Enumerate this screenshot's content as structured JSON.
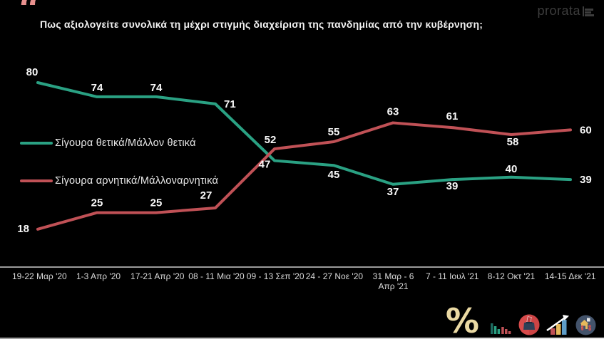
{
  "header": {
    "quote_glyph": "“",
    "title": "Πως αξιολογείτε συνολικά τη μέχρι στιγμής διαχείριση της πανδημίας από την κυβέρνηση;",
    "brand": {
      "text": "prorata",
      "color": "#3d3d3d",
      "icon": "bar-chart-logo-icon"
    }
  },
  "chart_data": {
    "type": "line",
    "title": "Πως αξιολογείτε συνολικά τη μέχρι στιγμής διαχείριση της πανδημίας από την κυβέρνηση;",
    "categories": [
      "19-22 Μαρ '20",
      "1-3 Απρ '20",
      "17-21 Απρ '20",
      "08 - 11 Μια '20",
      "09 - 13 Σεπ '20",
      "24 - 27 Νοε '20",
      "31 Μαρ - 6 Απρ '21",
      "7 - 11 Ιουλ '21",
      "8-12 Οκτ '21",
      "14-15 Δεκ '21"
    ],
    "series": [
      {
        "name": "Σίγουρα θετικά/Μάλλον θετικά",
        "color": "#2aa183",
        "values": [
          80,
          74,
          74,
          71,
          47,
          45,
          37,
          39,
          40,
          39
        ]
      },
      {
        "name": "Σίγουρα αρνητικά/Μάλλοναρνητικά",
        "color": "#c05156",
        "values": [
          18,
          25,
          25,
          27,
          52,
          55,
          63,
          61,
          58,
          60
        ]
      }
    ],
    "ylim": [
      0,
      100
    ],
    "grid": false,
    "y_axis_visible": false,
    "data_labels": true,
    "legend_position": "middle-left",
    "label_offsets": [
      [
        [
          -8,
          -10
        ],
        [
          0,
          -8
        ],
        [
          0,
          -8
        ],
        [
          12,
          5
        ],
        [
          -14,
          10
        ],
        [
          0,
          18
        ],
        [
          0,
          15
        ],
        [
          0,
          14
        ],
        [
          0,
          -7
        ],
        [
          13,
          5
        ]
      ],
      [
        [
          -12,
          4
        ],
        [
          0,
          -9
        ],
        [
          0,
          -9
        ],
        [
          -13,
          -13
        ],
        [
          -6,
          -8
        ],
        [
          0,
          -9
        ],
        [
          0,
          -11
        ],
        [
          0,
          -11
        ],
        [
          2,
          15
        ],
        [
          13,
          5
        ]
      ]
    ],
    "label_anchors": [
      [
        "m",
        "m",
        "m",
        "s",
        "m",
        "m",
        "m",
        "m",
        "m",
        "s"
      ],
      [
        "e",
        "m",
        "m",
        "m",
        "m",
        "m",
        "m",
        "m",
        "m",
        "s"
      ]
    ]
  },
  "footer": {
    "percent_glyph": "%",
    "icons": [
      {
        "name": "percent-icon",
        "color": "#ead9a3"
      },
      {
        "name": "bar-chart-icon",
        "colors": [
          "#1d6b60",
          "#2aa183",
          "#c05156"
        ]
      },
      {
        "name": "ballot-box-icon",
        "colors": [
          "#d84b4b",
          "#2e4057"
        ]
      },
      {
        "name": "trend-chart-icon",
        "colors": [
          "#c05156",
          "#e5b95c",
          "#5e9dc8",
          "#ffffff"
        ]
      },
      {
        "name": "community-icon",
        "colors": [
          "#43536b",
          "#e5b95c",
          "#c05156"
        ]
      }
    ]
  },
  "colors": {
    "background": "#000000",
    "positive_line": "#2aa183",
    "negative_line": "#c05156",
    "quote_mark": "#e8908e",
    "axis_line": "#9a9a9a",
    "axis_labels": "#dadada",
    "data_labels": "#f8f8f8"
  }
}
